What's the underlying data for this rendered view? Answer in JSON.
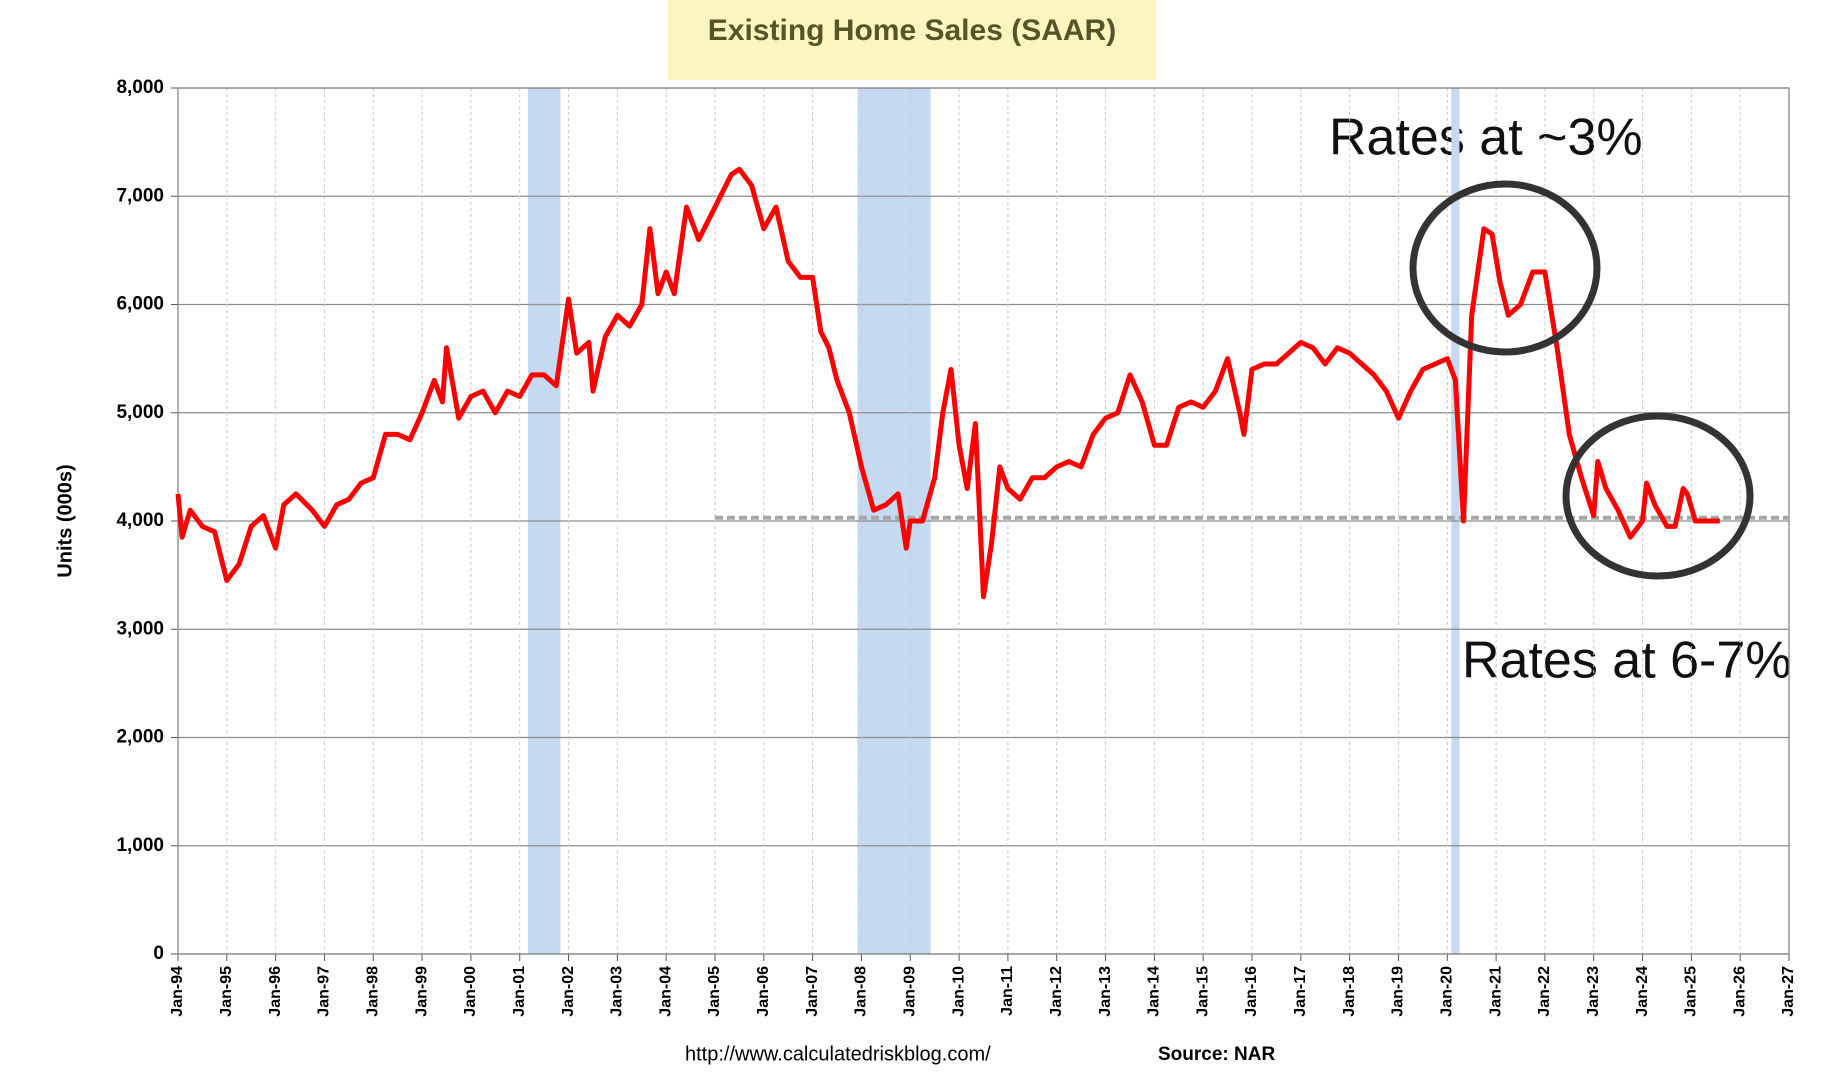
{
  "chart_data": {
    "type": "line",
    "title": "Existing Home Sales (SAAR)",
    "y_label": "Units (000s)",
    "source_url": "http://www.calculatedriskblog.com/",
    "source": "Source: NAR",
    "annotations": [
      "Rates at ~3%",
      "Rates at 6-7%"
    ],
    "ylim": [
      0,
      8000
    ],
    "yticks": [
      0,
      {
        "value": 1000,
        "label": "1,000"
      },
      {
        "value": 2000,
        "label": "2,000"
      },
      {
        "value": 3000,
        "label": "3,000"
      },
      {
        "value": 4000,
        "label": "4,000"
      },
      {
        "value": 5000,
        "label": "5,000"
      },
      {
        "value": 6000,
        "label": "6,000"
      },
      {
        "value": 7000,
        "label": "7,000"
      },
      {
        "value": 8000,
        "label": "8,000"
      }
    ],
    "xlim": [
      "1994-01",
      "2027-01"
    ],
    "xticks": [
      {
        "value": "1994-01",
        "label": "Jan-94"
      },
      {
        "value": "1995-01",
        "label": "Jan-95"
      },
      {
        "value": "1996-01",
        "label": "Jan-96"
      },
      {
        "value": "1997-01",
        "label": "Jan-97"
      },
      {
        "value": "1998-01",
        "label": "Jan-98"
      },
      {
        "value": "1999-01",
        "label": "Jan-99"
      },
      {
        "value": "2000-01",
        "label": "Jan-00"
      },
      {
        "value": "2001-01",
        "label": "Jan-01"
      },
      {
        "value": "2002-01",
        "label": "Jan-02"
      },
      {
        "value": "2003-01",
        "label": "Jan-03"
      },
      {
        "value": "2004-01",
        "label": "Jan-04"
      },
      {
        "value": "2005-01",
        "label": "Jan-05"
      },
      {
        "value": "2006-01",
        "label": "Jan-06"
      },
      {
        "value": "2007-01",
        "label": "Jan-07"
      },
      {
        "value": "2008-01",
        "label": "Jan-08"
      },
      {
        "value": "2009-01",
        "label": "Jan-09"
      },
      {
        "value": "2010-01",
        "label": "Jan-10"
      },
      {
        "value": "2011-01",
        "label": "Jan-11"
      },
      {
        "value": "2012-01",
        "label": "Jan-12"
      },
      {
        "value": "2013-01",
        "label": "Jan-13"
      },
      {
        "value": "2014-01",
        "label": "Jan-14"
      },
      {
        "value": "2015-01",
        "label": "Jan-15"
      },
      {
        "value": "2016-01",
        "label": "Jan-16"
      },
      {
        "value": "2017-01",
        "label": "Jan-17"
      },
      {
        "value": "2018-01",
        "label": "Jan-18"
      },
      {
        "value": "2019-01",
        "label": "Jan-19"
      },
      {
        "value": "2020-01",
        "label": "Jan-20"
      },
      {
        "value": "2021-01",
        "label": "Jan-21"
      },
      {
        "value": "2022-01",
        "label": "Jan-22"
      },
      {
        "value": "2023-01",
        "label": "Jan-23"
      },
      {
        "value": "2024-01",
        "label": "Jan-24"
      },
      {
        "value": "2025-01",
        "label": "Jan-25"
      },
      {
        "value": "2026-01",
        "label": "Jan-26"
      },
      {
        "value": "2027-01",
        "label": "Jan-27"
      }
    ],
    "grid": true,
    "recession_color": "#c5d9f1",
    "recessions": [
      [
        "2001-03",
        "2001-11"
      ],
      [
        "2007-12",
        "2009-06"
      ],
      [
        "2020-02",
        "2020-04"
      ]
    ],
    "reference_line": {
      "value": 4030,
      "x": [
        "2005-01",
        "2027-01"
      ],
      "color": "#a6a6a6"
    },
    "x": [
      "1994-01",
      "1994-02",
      "1994-04",
      "1994-07",
      "1994-10",
      "1995-01",
      "1995-04",
      "1995-07",
      "1995-10",
      "1996-01",
      "1996-03",
      "1996-06",
      "1996-10",
      "1997-01",
      "1997-04",
      "1997-07",
      "1997-10",
      "1998-01",
      "1998-04",
      "1998-07",
      "1998-10",
      "1999-01",
      "1999-04",
      "1999-06",
      "1999-07",
      "1999-10",
      "2000-01",
      "2000-04",
      "2000-07",
      "2000-10",
      "2001-01",
      "2001-04",
      "2001-07",
      "2001-10",
      "2002-01",
      "2002-03",
      "2002-06",
      "2002-07",
      "2002-10",
      "2003-01",
      "2003-04",
      "2003-07",
      "2003-09",
      "2003-11",
      "2004-01",
      "2004-03",
      "2004-06",
      "2004-09",
      "2005-01",
      "2005-05",
      "2005-07",
      "2005-10",
      "2006-01",
      "2006-04",
      "2006-07",
      "2006-10",
      "2007-01",
      "2007-03",
      "2007-05",
      "2007-07",
      "2007-10",
      "2008-01",
      "2008-04",
      "2008-07",
      "2008-10",
      "2008-12",
      "2009-01",
      "2009-04",
      "2009-07",
      "2009-09",
      "2009-11",
      "2010-01",
      "2010-03",
      "2010-05",
      "2010-07",
      "2010-09",
      "2010-11",
      "2011-01",
      "2011-04",
      "2011-07",
      "2011-10",
      "2012-01",
      "2012-04",
      "2012-07",
      "2012-10",
      "2013-01",
      "2013-04",
      "2013-07",
      "2013-10",
      "2014-01",
      "2014-04",
      "2014-07",
      "2014-10",
      "2015-01",
      "2015-04",
      "2015-07",
      "2015-10",
      "2015-11",
      "2016-01",
      "2016-04",
      "2016-07",
      "2016-10",
      "2017-01",
      "2017-04",
      "2017-07",
      "2017-10",
      "2018-01",
      "2018-04",
      "2018-07",
      "2018-10",
      "2019-01",
      "2019-04",
      "2019-07",
      "2019-10",
      "2020-01",
      "2020-03",
      "2020-05",
      "2020-07",
      "2020-10",
      "2020-12",
      "2021-02",
      "2021-04",
      "2021-07",
      "2021-10",
      "2022-01",
      "2022-04",
      "2022-07",
      "2022-10",
      "2023-01",
      "2023-02",
      "2023-04",
      "2023-07",
      "2023-10",
      "2024-01",
      "2024-02",
      "2024-04",
      "2024-07",
      "2024-09",
      "2024-11",
      "2024-12",
      "2025-02",
      "2025-05",
      "2025-08"
    ],
    "series": [
      {
        "color": "#ff0000",
        "values": [
          4250,
          3850,
          4100,
          3950,
          3900,
          3450,
          3600,
          3950,
          4050,
          3750,
          4150,
          4250,
          4100,
          3950,
          4150,
          4200,
          4350,
          4400,
          4800,
          4800,
          4750,
          5000,
          5300,
          5100,
          5600,
          4950,
          5150,
          5200,
          5000,
          5200,
          5150,
          5350,
          5350,
          5250,
          6050,
          5550,
          5650,
          5200,
          5700,
          5900,
          5800,
          6000,
          6700,
          6100,
          6300,
          6100,
          6900,
          6600,
          6900,
          7200,
          7250,
          7100,
          6700,
          6900,
          6400,
          6250,
          6250,
          5750,
          5600,
          5300,
          5000,
          4500,
          4100,
          4150,
          4250,
          3750,
          4000,
          4000,
          4400,
          5000,
          5400,
          4700,
          4300,
          4900,
          3300,
          3800,
          4500,
          4300,
          4200,
          4400,
          4400,
          4500,
          4550,
          4500,
          4800,
          4950,
          5000,
          5350,
          5100,
          4700,
          4700,
          5050,
          5100,
          5050,
          5200,
          5500,
          5000,
          4800,
          5400,
          5450,
          5450,
          5550,
          5650,
          5600,
          5450,
          5600,
          5550,
          5450,
          5350,
          5200,
          4950,
          5200,
          5400,
          5450,
          5500,
          5300,
          4000,
          5900,
          6700,
          6650,
          6200,
          5900,
          6000,
          6300,
          6300,
          5600,
          4800,
          4400,
          4050,
          4550,
          4300,
          4100,
          3850,
          4000,
          4350,
          4150,
          3950,
          3950,
          4300,
          4250,
          4000,
          4000,
          4000
        ]
      }
    ]
  }
}
